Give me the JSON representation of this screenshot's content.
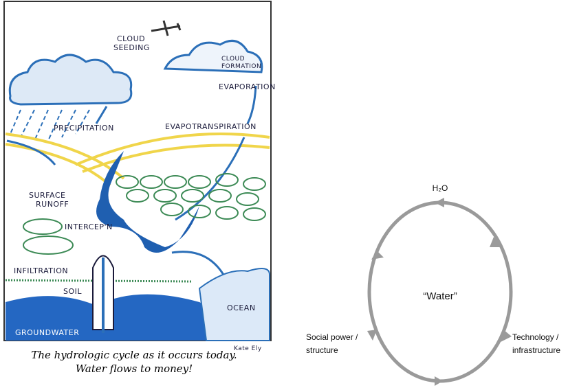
{
  "drawing": {
    "labels": [
      {
        "lines": [
          "CLOUD",
          "SEEDING"
        ]
      },
      {
        "lines": [
          "CLOUD",
          "FORMATION"
        ]
      },
      {
        "lines": [
          "EVAPORATION"
        ]
      },
      {
        "lines": [
          "PRECIPITATION"
        ]
      },
      {
        "lines": [
          "EVAPOTRANSPIRATION"
        ]
      },
      {
        "lines": [
          "SURFACE",
          "RUNOFF"
        ]
      },
      {
        "lines": [
          "INTERCEP'N"
        ]
      },
      {
        "lines": [
          "INFILTRATION"
        ]
      },
      {
        "lines": [
          "SOIL"
        ]
      },
      {
        "lines": [
          "OCEAN"
        ]
      },
      {
        "lines": [
          "GROUNDWATER"
        ]
      }
    ],
    "signature": "Kate Ely",
    "caption": [
      "The hydrologic cycle as it occurs today.",
      "Water flows to money!"
    ]
  },
  "cycle": {
    "top": "H₂O",
    "center": "“Water”",
    "left": [
      "Social power /",
      "structure"
    ],
    "right": [
      "Technology /",
      "infrastructure"
    ]
  }
}
